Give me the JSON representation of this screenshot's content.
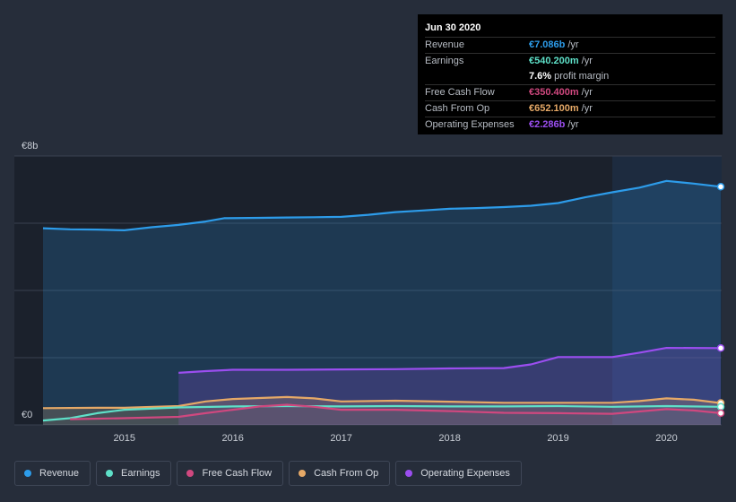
{
  "chart_data": {
    "type": "area",
    "y_axis": {
      "top_label": "€8b",
      "bottom_label": "€0",
      "ylim": [
        0,
        8
      ]
    },
    "x_ticks": [
      2015,
      2016,
      2017,
      2018,
      2019,
      2020
    ],
    "x_tick_labels": [
      "2015",
      "2016",
      "2017",
      "2018",
      "2019",
      "2020"
    ],
    "xlim": [
      2014.25,
      2020.5
    ],
    "highlight_from": 2019.5,
    "series": [
      {
        "key": "revenue",
        "name": "Revenue",
        "color": "#2d9cea",
        "fill": true,
        "points": [
          [
            2014.25,
            5.85
          ],
          [
            2014.5,
            5.82
          ],
          [
            2014.75,
            5.81
          ],
          [
            2015.0,
            5.79
          ],
          [
            2015.25,
            5.88
          ],
          [
            2015.5,
            5.95
          ],
          [
            2015.75,
            6.05
          ],
          [
            2015.92,
            6.15
          ],
          [
            2016.25,
            6.16
          ],
          [
            2016.5,
            6.17
          ],
          [
            2016.75,
            6.18
          ],
          [
            2017.0,
            6.19
          ],
          [
            2017.25,
            6.25
          ],
          [
            2017.5,
            6.33
          ],
          [
            2017.75,
            6.38
          ],
          [
            2018.0,
            6.43
          ],
          [
            2018.25,
            6.45
          ],
          [
            2018.5,
            6.48
          ],
          [
            2018.75,
            6.52
          ],
          [
            2019.0,
            6.6
          ],
          [
            2019.25,
            6.77
          ],
          [
            2019.5,
            6.92
          ],
          [
            2019.75,
            7.06
          ],
          [
            2020.0,
            7.26
          ],
          [
            2020.25,
            7.18
          ],
          [
            2020.5,
            7.086
          ]
        ]
      },
      {
        "key": "operating_expenses",
        "name": "Operating Expenses",
        "color": "#9b4ef0",
        "fill": true,
        "points": [
          [
            2015.5,
            1.55
          ],
          [
            2015.75,
            1.6
          ],
          [
            2016.0,
            1.64
          ],
          [
            2016.5,
            1.64
          ],
          [
            2017.0,
            1.65
          ],
          [
            2017.5,
            1.66
          ],
          [
            2018.0,
            1.68
          ],
          [
            2018.5,
            1.69
          ],
          [
            2018.75,
            1.8
          ],
          [
            2019.0,
            2.02
          ],
          [
            2019.25,
            2.02
          ],
          [
            2019.5,
            2.02
          ],
          [
            2019.75,
            2.15
          ],
          [
            2020.0,
            2.29
          ],
          [
            2020.5,
            2.286
          ]
        ]
      },
      {
        "key": "cash_from_op",
        "name": "Cash From Op",
        "color": "#e6a967",
        "fill": true,
        "points": [
          [
            2014.25,
            0.5
          ],
          [
            2014.75,
            0.51
          ],
          [
            2015.0,
            0.51
          ],
          [
            2015.5,
            0.56
          ],
          [
            2015.75,
            0.7
          ],
          [
            2016.0,
            0.77
          ],
          [
            2016.25,
            0.8
          ],
          [
            2016.5,
            0.83
          ],
          [
            2016.75,
            0.79
          ],
          [
            2017.0,
            0.7
          ],
          [
            2017.5,
            0.72
          ],
          [
            2018.0,
            0.69
          ],
          [
            2018.5,
            0.66
          ],
          [
            2019.0,
            0.66
          ],
          [
            2019.5,
            0.66
          ],
          [
            2019.75,
            0.71
          ],
          [
            2020.0,
            0.79
          ],
          [
            2020.25,
            0.75
          ],
          [
            2020.5,
            0.652
          ]
        ]
      },
      {
        "key": "earnings",
        "name": "Earnings",
        "color": "#5ee0c8",
        "fill": false,
        "points": [
          [
            2014.25,
            0.13
          ],
          [
            2014.5,
            0.2
          ],
          [
            2014.75,
            0.35
          ],
          [
            2015.0,
            0.45
          ],
          [
            2015.5,
            0.52
          ],
          [
            2016.0,
            0.55
          ],
          [
            2016.5,
            0.56
          ],
          [
            2017.0,
            0.55
          ],
          [
            2017.5,
            0.56
          ],
          [
            2018.0,
            0.55
          ],
          [
            2018.5,
            0.55
          ],
          [
            2019.0,
            0.56
          ],
          [
            2019.5,
            0.54
          ],
          [
            2020.0,
            0.56
          ],
          [
            2020.5,
            0.54
          ]
        ]
      },
      {
        "key": "free_cash_flow",
        "name": "Free Cash Flow",
        "color": "#d0487f",
        "fill": false,
        "points": [
          [
            2014.5,
            0.17
          ],
          [
            2015.0,
            0.2
          ],
          [
            2015.5,
            0.24
          ],
          [
            2015.75,
            0.35
          ],
          [
            2016.0,
            0.45
          ],
          [
            2016.25,
            0.55
          ],
          [
            2016.5,
            0.6
          ],
          [
            2016.75,
            0.54
          ],
          [
            2017.0,
            0.45
          ],
          [
            2017.5,
            0.45
          ],
          [
            2018.0,
            0.41
          ],
          [
            2018.5,
            0.36
          ],
          [
            2019.0,
            0.35
          ],
          [
            2019.5,
            0.33
          ],
          [
            2019.75,
            0.4
          ],
          [
            2020.0,
            0.47
          ],
          [
            2020.25,
            0.43
          ],
          [
            2020.5,
            0.3504
          ]
        ]
      }
    ]
  },
  "tooltip": {
    "date": "Jun 30 2020",
    "rows": [
      {
        "label": "Revenue",
        "value": "€7.086b",
        "unit": "/yr",
        "color": "#2d9cea"
      },
      {
        "label": "Earnings",
        "value": "€540.200m",
        "unit": "/yr",
        "color": "#5ee0c8"
      },
      {
        "label": "",
        "value": "7.6%",
        "unit": "profit margin",
        "color": "#ffffff"
      },
      {
        "label": "Free Cash Flow",
        "value": "€350.400m",
        "unit": "/yr",
        "color": "#d0487f"
      },
      {
        "label": "Cash From Op",
        "value": "€652.100m",
        "unit": "/yr",
        "color": "#e6a967"
      },
      {
        "label": "Operating Expenses",
        "value": "€2.286b",
        "unit": "/yr",
        "color": "#9b4ef0"
      }
    ]
  },
  "legend": [
    {
      "label": "Revenue",
      "color": "#2d9cea"
    },
    {
      "label": "Earnings",
      "color": "#5ee0c8"
    },
    {
      "label": "Free Cash Flow",
      "color": "#d0487f"
    },
    {
      "label": "Cash From Op",
      "color": "#e6a967"
    },
    {
      "label": "Operating Expenses",
      "color": "#9b4ef0"
    }
  ]
}
